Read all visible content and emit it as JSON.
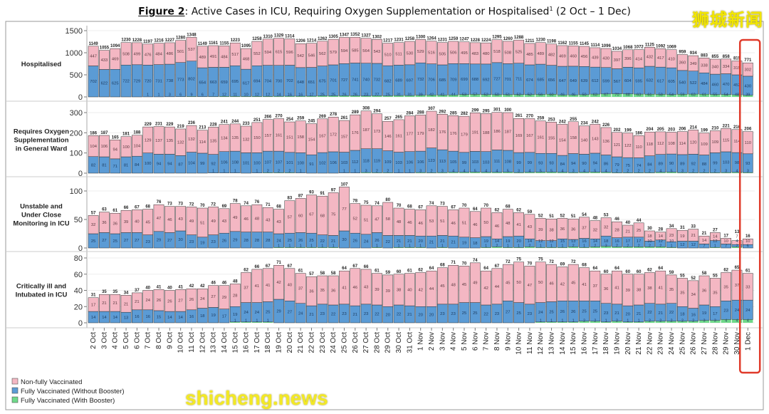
{
  "title": {
    "figure": "Figure 2",
    "text": ": Active Cases in ICU, Requiring Oxygen Supplementation or Hospitalised",
    "sup": "1",
    "range": " (2 Oct – 1 Dec)"
  },
  "watermarks": {
    "top_right": "狮城新闻",
    "bottom_left": "shicheng.news"
  },
  "colors": {
    "non_fully": "#f4b7c3",
    "fully_no_booster": "#5b9bd5",
    "booster": "#6fd98a",
    "highlight": "#e03a2a"
  },
  "chart_data": {
    "type": "bar",
    "stacked": true,
    "highlight_category": "1 Dec",
    "legend": {
      "placement": "bottom-left",
      "entries": [
        "Non-fully Vaccinated",
        "Fully Vaccinated (Without Booster)",
        "Fully Vaccinated (With Booster)"
      ]
    },
    "categories": [
      "2 Oct",
      "3 Oct",
      "4 Oct",
      "5 Oct",
      "6 Oct",
      "7 Oct",
      "8 Oct",
      "9 Oct",
      "10 Oct",
      "11 Oct",
      "12 Oct",
      "13 Oct",
      "14 Oct",
      "15 Oct",
      "16 Oct",
      "17 Oct",
      "18 Oct",
      "19 Oct",
      "20 Oct",
      "21 Oct",
      "22 Oct",
      "23 Oct",
      "24 Oct",
      "25 Oct",
      "26 Oct",
      "27 Oct",
      "28 Oct",
      "29 Oct",
      "30 Oct",
      "31 Oct",
      "1 Nov",
      "2 Nov",
      "3 Nov",
      "4 Nov",
      "5 Nov",
      "6 Nov",
      "7 Nov",
      "8 Nov",
      "9 Nov",
      "10 Nov",
      "11 Nov",
      "12 Nov",
      "13 Nov",
      "14 Nov",
      "15 Nov",
      "16 Nov",
      "17 Nov",
      "18 Nov",
      "19 Nov",
      "20 Nov",
      "21 Nov",
      "22 Nov",
      "23 Nov",
      "24 Nov",
      "25 Nov",
      "26 Nov",
      "27 Nov",
      "28 Nov",
      "29 Nov",
      "30 Nov",
      "1 Dec"
    ],
    "panels": [
      {
        "label": [
          "Hospitalised"
        ],
        "yticks": [
          0,
          500,
          1000,
          1500
        ],
        "ylim": [
          0,
          1500
        ],
        "totals": [
          1149,
          1055,
          1094,
          1230,
          1228,
          1197,
          1216,
          1227,
          1280,
          1348,
          1149,
          1161,
          1155,
          1223,
          1095,
          1258,
          1310,
          1329,
          1314,
          1206,
          1214,
          1262,
          1305,
          1347,
          1352,
          1327,
          1302,
          1217,
          1231,
          1258,
          1300,
          1264,
          1231,
          1259,
          1247,
          1228,
          1224,
          1295,
          1260,
          1288,
          1211,
          1230,
          1198,
          1162,
          1155,
          1145,
          1114,
          1096,
          1034,
          1068,
          1072,
          1125,
          1092,
          1069,
          959,
          934,
          883,
          855,
          858,
          815,
          771
        ],
        "non_fully": [
          447,
          433,
          469,
          508,
          499,
          476,
          484,
          486,
          501,
          537,
          489,
          491,
          484,
          517,
          468,
          552,
          594,
          615,
          596,
          542,
          546,
          562,
          579,
          594,
          585,
          564,
          543,
          510,
          511,
          530,
          529,
          516,
          505,
          506,
          495,
          483,
          480,
          518,
          508,
          525,
          485,
          489,
          482,
          469,
          460,
          456,
          439,
          430,
          397,
          396,
          414,
          432,
          417,
          410,
          360,
          349,
          338,
          340,
          334,
          315,
          302
        ],
        "fully_no_booster": [
          702,
          622,
          625,
          722,
          729,
          720,
          731,
          738,
          773,
          802,
          654,
          663,
          659,
          695,
          617,
          694,
          704,
          700,
          702,
          648,
          651,
          675,
          701,
          727,
          741,
          740,
          732,
          682,
          689,
          697,
          732,
          706,
          685,
          709,
          699,
          688,
          692,
          727,
          701,
          711,
          674,
          685,
          656,
          647,
          649,
          639,
          612,
          599,
          567,
          604,
          595,
          632,
          617,
          605,
          540,
          522,
          484,
          460,
          470,
          452,
          430
        ],
        "booster": [
          0,
          0,
          0,
          0,
          0,
          1,
          1,
          3,
          6,
          9,
          6,
          7,
          12,
          11,
          10,
          12,
          12,
          14,
          16,
          16,
          17,
          25,
          25,
          26,
          26,
          23,
          27,
          25,
          31,
          31,
          39,
          42,
          41,
          44,
          53,
          57,
          52,
          50,
          51,
          52,
          52,
          56,
          60,
          46,
          46,
          50,
          63,
          67,
          70,
          68,
          63,
          61,
          58,
          54,
          59,
          63,
          61,
          55,
          54,
          48,
          39
        ]
      },
      {
        "label": [
          "Requires Oxygen",
          "Supplementation",
          "in General Ward"
        ],
        "yticks": [
          0,
          100,
          200,
          300
        ],
        "ylim": [
          0,
          300
        ],
        "totals": [
          186,
          187,
          165,
          181,
          188,
          229,
          231,
          229,
          219,
          236,
          213,
          228,
          241,
          244,
          233,
          251,
          266,
          270,
          254,
          259,
          245,
          269,
          278,
          261,
          289,
          308,
          294,
          257,
          265,
          284,
          288,
          307,
          292,
          285,
          282,
          299,
          295,
          301,
          300,
          261,
          270,
          259,
          253,
          242,
          255,
          234,
          242,
          226,
          202,
          199,
          186,
          204,
          205,
          203,
          206,
          214,
          199,
          210,
          221,
          216,
          206
        ],
        "non_fully": [
          104,
          106,
          94,
          100,
          104,
          129,
          137,
          135,
          132,
          132,
          114,
          135,
          134,
          135,
          132,
          150,
          157,
          161,
          151,
          158,
          154,
          167,
          172,
          157,
          176,
          187,
          173,
          146,
          161,
          177,
          179,
          182,
          176,
          176,
          179,
          191,
          188,
          186,
          187,
          169,
          167,
          161,
          155,
          154,
          158,
          140,
          143,
          136,
          121,
          122,
          110,
          118,
          112,
          108,
          114,
          120,
          109,
          109,
          115,
          114,
          110
        ],
        "fully_no_booster": [
          82,
          81,
          71,
          81,
          84,
          100,
          94,
          94,
          87,
          104,
          99,
          92,
          106,
          108,
          101,
          100,
          107,
          107,
          101,
          100,
          91,
          102,
          106,
          103,
          112,
          118,
          119,
          109,
          103,
          106,
          106,
          123,
          113,
          105,
          99,
          103,
          103,
          111,
          108,
          99,
          99,
          93,
          93,
          84,
          94,
          90,
          94,
          86,
          79,
          75,
          74,
          84,
          89,
          90,
          89,
          92,
          88,
          99,
          103,
          98,
          93
        ],
        "booster": [
          0,
          0,
          0,
          0,
          0,
          0,
          0,
          0,
          0,
          0,
          0,
          1,
          1,
          1,
          0,
          1,
          2,
          2,
          2,
          1,
          0,
          0,
          0,
          1,
          1,
          3,
          2,
          2,
          1,
          1,
          3,
          2,
          3,
          4,
          4,
          5,
          4,
          4,
          5,
          3,
          4,
          5,
          5,
          4,
          3,
          4,
          5,
          4,
          2,
          2,
          2,
          2,
          4,
          5,
          3,
          2,
          2,
          2,
          3,
          4,
          3
        ]
      },
      {
        "label": [
          "Unstable and",
          "Under Close",
          "Monitoring in ICU"
        ],
        "yticks": [
          0,
          50,
          100
        ],
        "ylim": [
          0,
          100
        ],
        "totals": [
          57,
          63,
          61,
          66,
          67,
          68,
          76,
          73,
          73,
          72,
          70,
          72,
          69,
          78,
          74,
          76,
          71,
          68,
          83,
          87,
          93,
          91,
          97,
          107,
          78,
          75,
          74,
          80,
          70,
          68,
          67,
          74,
          73,
          67,
          70,
          64,
          70,
          62,
          68,
          62,
          59,
          52,
          51,
          52,
          51,
          54,
          48,
          53,
          46,
          40,
          44,
          30,
          28,
          34,
          31,
          33,
          21,
          27,
          17,
          13,
          16
        ],
        "non_fully": [
          32,
          36,
          36,
          39,
          40,
          45,
          47,
          46,
          43,
          49,
          51,
          49,
          43,
          49,
          46,
          48,
          43,
          43,
          57,
          60,
          67,
          68,
          75,
          77,
          52,
          51,
          47,
          58,
          48,
          46,
          46,
          53,
          51,
          46,
          51,
          46,
          50,
          46,
          48,
          41,
          43,
          39,
          38,
          36,
          36,
          37,
          32,
          32,
          28,
          21,
          25,
          18,
          14,
          23,
          19,
          21,
          14,
          14,
          10,
          7,
          10
        ],
        "fully_no_booster": [
          25,
          27,
          25,
          27,
          27,
          23,
          29,
          27,
          30,
          23,
          19,
          23,
          26,
          29,
          28,
          28,
          28,
          24,
          25,
          26,
          25,
          22,
          21,
          30,
          26,
          24,
          26,
          22,
          21,
          21,
          20,
          21,
          21,
          21,
          19,
          18,
          19,
          14,
          19,
          20,
          14,
          12,
          12,
          15,
          13,
          16,
          14,
          18,
          16,
          17,
          17,
          10,
          12,
          10,
          12,
          12,
          7,
          12,
          7,
          4,
          6
        ],
        "booster": [
          0,
          0,
          0,
          0,
          0,
          0,
          0,
          0,
          0,
          0,
          0,
          0,
          0,
          0,
          0,
          0,
          0,
          1,
          1,
          1,
          1,
          1,
          1,
          0,
          0,
          0,
          1,
          0,
          1,
          1,
          1,
          0,
          1,
          0,
          0,
          0,
          1,
          2,
          1,
          1,
          2,
          1,
          1,
          1,
          2,
          1,
          2,
          3,
          2,
          2,
          2,
          2,
          2,
          1,
          0,
          0,
          0,
          1,
          0,
          2,
          0
        ]
      },
      {
        "label": [
          "Critically ill and",
          "Intubated in ICU"
        ],
        "yticks": [
          0,
          20,
          40,
          60,
          80
        ],
        "ylim": [
          0,
          80
        ],
        "totals": [
          31,
          35,
          35,
          34,
          37,
          40,
          41,
          40,
          41,
          42,
          42,
          46,
          46,
          48,
          62,
          66,
          67,
          71,
          67,
          61,
          57,
          58,
          58,
          64,
          67,
          66,
          61,
          59,
          60,
          61,
          62,
          64,
          68,
          71,
          70,
          74,
          64,
          67,
          72,
          75,
          70,
          75,
          72,
          69,
          72,
          68,
          64,
          60,
          64,
          60,
          60,
          62,
          64,
          59,
          55,
          52,
          58,
          55,
          62,
          65,
          61
        ],
        "non_fully": [
          17,
          21,
          21,
          21,
          21,
          24,
          26,
          26,
          27,
          26,
          24,
          27,
          29,
          28,
          37,
          41,
          41,
          42,
          40,
          37,
          36,
          35,
          36,
          41,
          46,
          43,
          39,
          39,
          38,
          40,
          42,
          44,
          45,
          48,
          45,
          49,
          42,
          44,
          45,
          50,
          47,
          50,
          46,
          42,
          45,
          41,
          37,
          36,
          41,
          39,
          38,
          38,
          41,
          35,
          35,
          34,
          36,
          35,
          35,
          37,
          33
        ],
        "fully_no_booster": [
          14,
          14,
          14,
          13,
          16,
          16,
          15,
          14,
          14,
          16,
          18,
          19,
          17,
          19,
          24,
          24,
          25,
          29,
          27,
          24,
          21,
          23,
          22,
          23,
          21,
          23,
          22,
          20,
          22,
          21,
          20,
          20,
          23,
          23,
          25,
          25,
          22,
          23,
          27,
          25,
          23,
          24,
          25,
          26,
          26,
          25,
          25,
          23,
          21,
          20,
          21,
          22,
          21,
          22,
          18,
          16,
          19,
          17,
          23,
          24,
          24
        ],
        "booster": [
          0,
          0,
          0,
          0,
          0,
          0,
          0,
          0,
          0,
          0,
          0,
          0,
          0,
          1,
          1,
          1,
          1,
          0,
          0,
          0,
          0,
          0,
          0,
          0,
          0,
          0,
          0,
          0,
          0,
          0,
          0,
          0,
          0,
          0,
          0,
          0,
          0,
          0,
          0,
          0,
          0,
          1,
          1,
          1,
          1,
          2,
          2,
          1,
          2,
          1,
          1,
          2,
          2,
          2,
          2,
          2,
          3,
          3,
          4,
          4,
          4
        ]
      }
    ]
  }
}
